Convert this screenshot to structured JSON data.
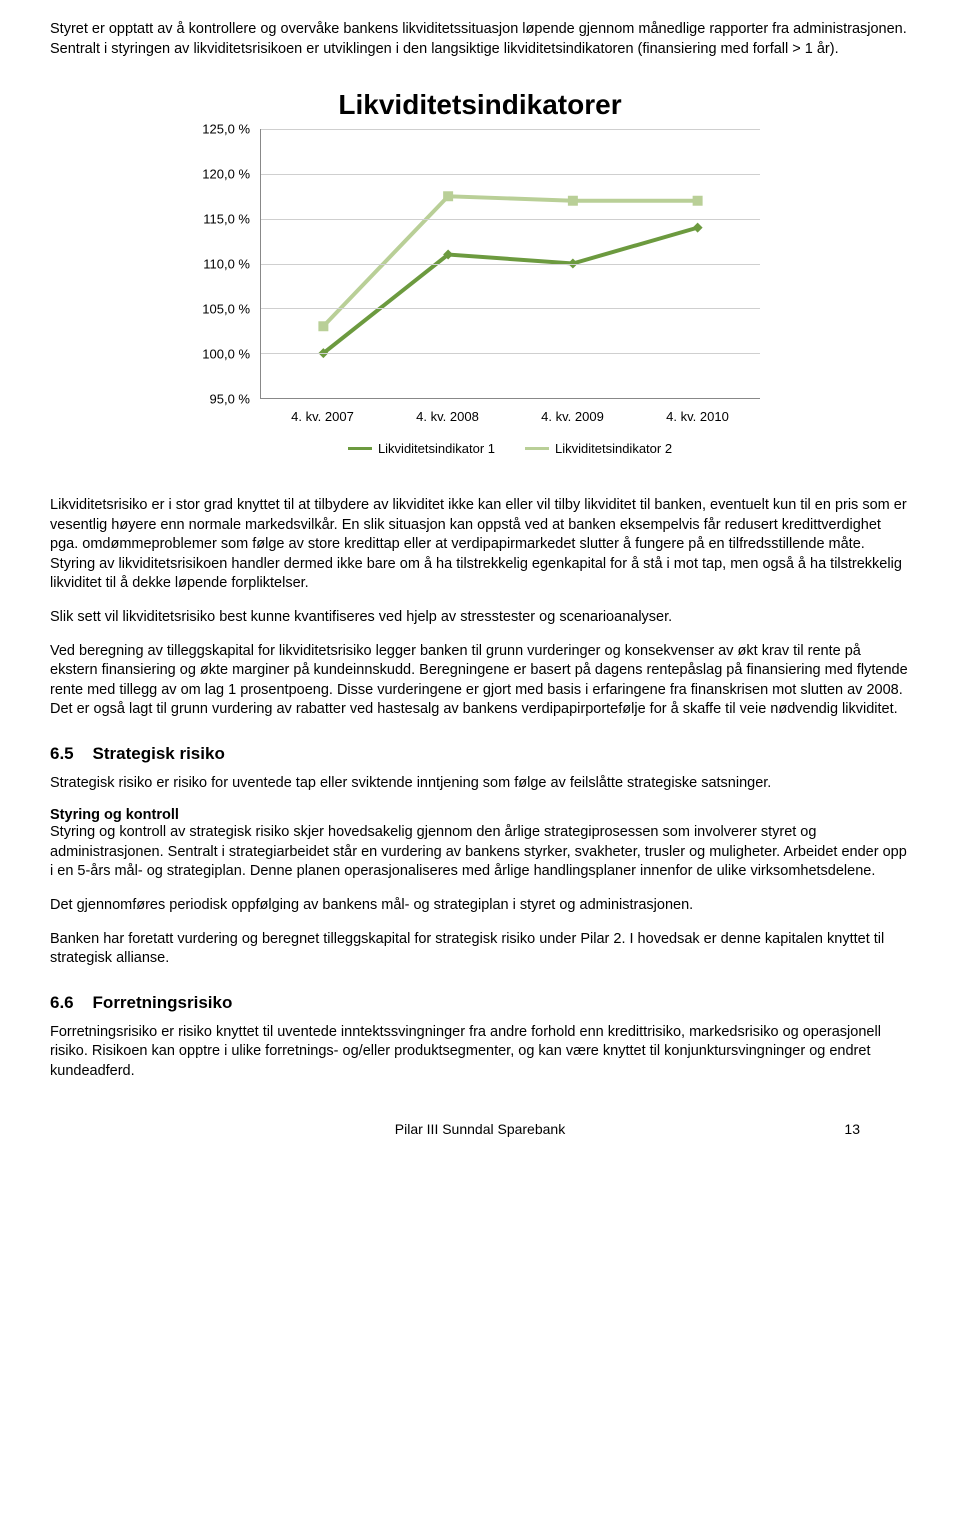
{
  "intro_para1": "Styret er opptatt av å kontrollere og overvåke bankens likviditetssituasjon løpende gjennom månedlige rapporter fra administrasjonen. Sentralt i styringen av likviditetsrisikoen er utviklingen i den langsiktige likviditetsindikatoren (finansiering med forfall > 1 år).",
  "chart": {
    "type": "line",
    "title": "Likviditetsindikatorer",
    "title_fontsize": 28,
    "categories": [
      "4. kv. 2007",
      "4. kv. 2008",
      "4. kv. 2009",
      "4. kv. 2010"
    ],
    "series": [
      {
        "name": "Likviditetsindikator 1",
        "color": "#6c9a3f",
        "marker": "diamond",
        "values": [
          100.0,
          111.0,
          110.0,
          114.0
        ]
      },
      {
        "name": "Likviditetsindikator 2",
        "color": "#b9cf97",
        "marker": "square",
        "values": [
          103.0,
          117.5,
          117.0,
          117.0
        ]
      }
    ],
    "ylim": [
      95,
      125
    ],
    "ytick_step": 5,
    "y_format_suffix": ",0 %",
    "line_width": 4,
    "marker_size": 10,
    "grid_color": "#cfcfcf",
    "axis_color": "#888888",
    "background_color": "#ffffff",
    "label_fontsize": 13
  },
  "body_para1": "Likviditetsrisiko er i stor grad knyttet til at tilbydere av likviditet ikke kan eller vil tilby likviditet til banken, eventuelt kun til en pris som er vesentlig høyere enn normale markedsvilkår. En slik situasjon kan oppstå ved at banken eksempelvis får redusert kredittverdighet pga. omdømmeproblemer som følge av store kredittap eller at verdipapirmarkedet slutter å fungere på en tilfredsstillende måte. Styring av likviditetsrisikoen handler dermed ikke bare om å ha tilstrekkelig egenkapital for å stå i mot tap, men også å ha tilstrekkelig likviditet til å dekke løpende forpliktelser.",
  "body_para2": "Slik sett vil likviditetsrisiko best kunne kvantifiseres ved hjelp av stresstester og scenarioanalyser.",
  "body_para3": "Ved beregning av tilleggskapital for likviditetsrisiko legger banken til grunn vurderinger og konsekvenser av økt krav til rente på ekstern finansiering og økte marginer på kundeinnskudd. Beregningene er basert på dagens rentepåslag på finansiering med flytende rente med tillegg av om lag 1 prosentpoeng. Disse vurderingene er gjort med basis i erfaringene fra finanskrisen mot slutten av 2008. Det er også lagt til grunn vurdering av rabatter ved hastesalg av bankens verdipapirportefølje for å skaffe til veie nødvendig likviditet.",
  "section65_number": "6.5",
  "section65_title": "Strategisk risiko",
  "section65_para1": "Strategisk risiko er risiko for uventede tap eller sviktende inntjening som følge av feilslåtte strategiske satsninger.",
  "section65_subheading": "Styring og kontroll",
  "section65_para2": "Styring og kontroll av strategisk risiko skjer hovedsakelig gjennom den årlige strategiprosessen som involverer styret og administrasjonen. Sentralt i strategiarbeidet står en vurdering av bankens styrker, svakheter, trusler og muligheter. Arbeidet ender opp i en 5-års mål- og strategiplan. Denne planen operasjonaliseres med årlige handlingsplaner innenfor de ulike virksomhetsdelene.",
  "section65_para3": "Det gjennomføres periodisk oppfølging av bankens mål- og strategiplan i styret og administrasjonen.",
  "section65_para4": "Banken har foretatt vurdering og beregnet tilleggskapital for strategisk risiko under Pilar 2. I hovedsak er denne kapitalen knyttet til strategisk allianse.",
  "section66_number": "6.6",
  "section66_title": "Forretningsrisiko",
  "section66_para1": "Forretningsrisiko er risiko knyttet til uventede inntektssvingninger fra andre forhold enn kredittrisiko, markedsrisiko og operasjonell risiko. Risikoen kan opptre i ulike forretnings- og/eller produktsegmenter, og kan være knyttet til konjunktursvingninger og endret kundeadferd.",
  "footer_center": "Pilar III Sunndal Sparebank",
  "footer_page": "13"
}
